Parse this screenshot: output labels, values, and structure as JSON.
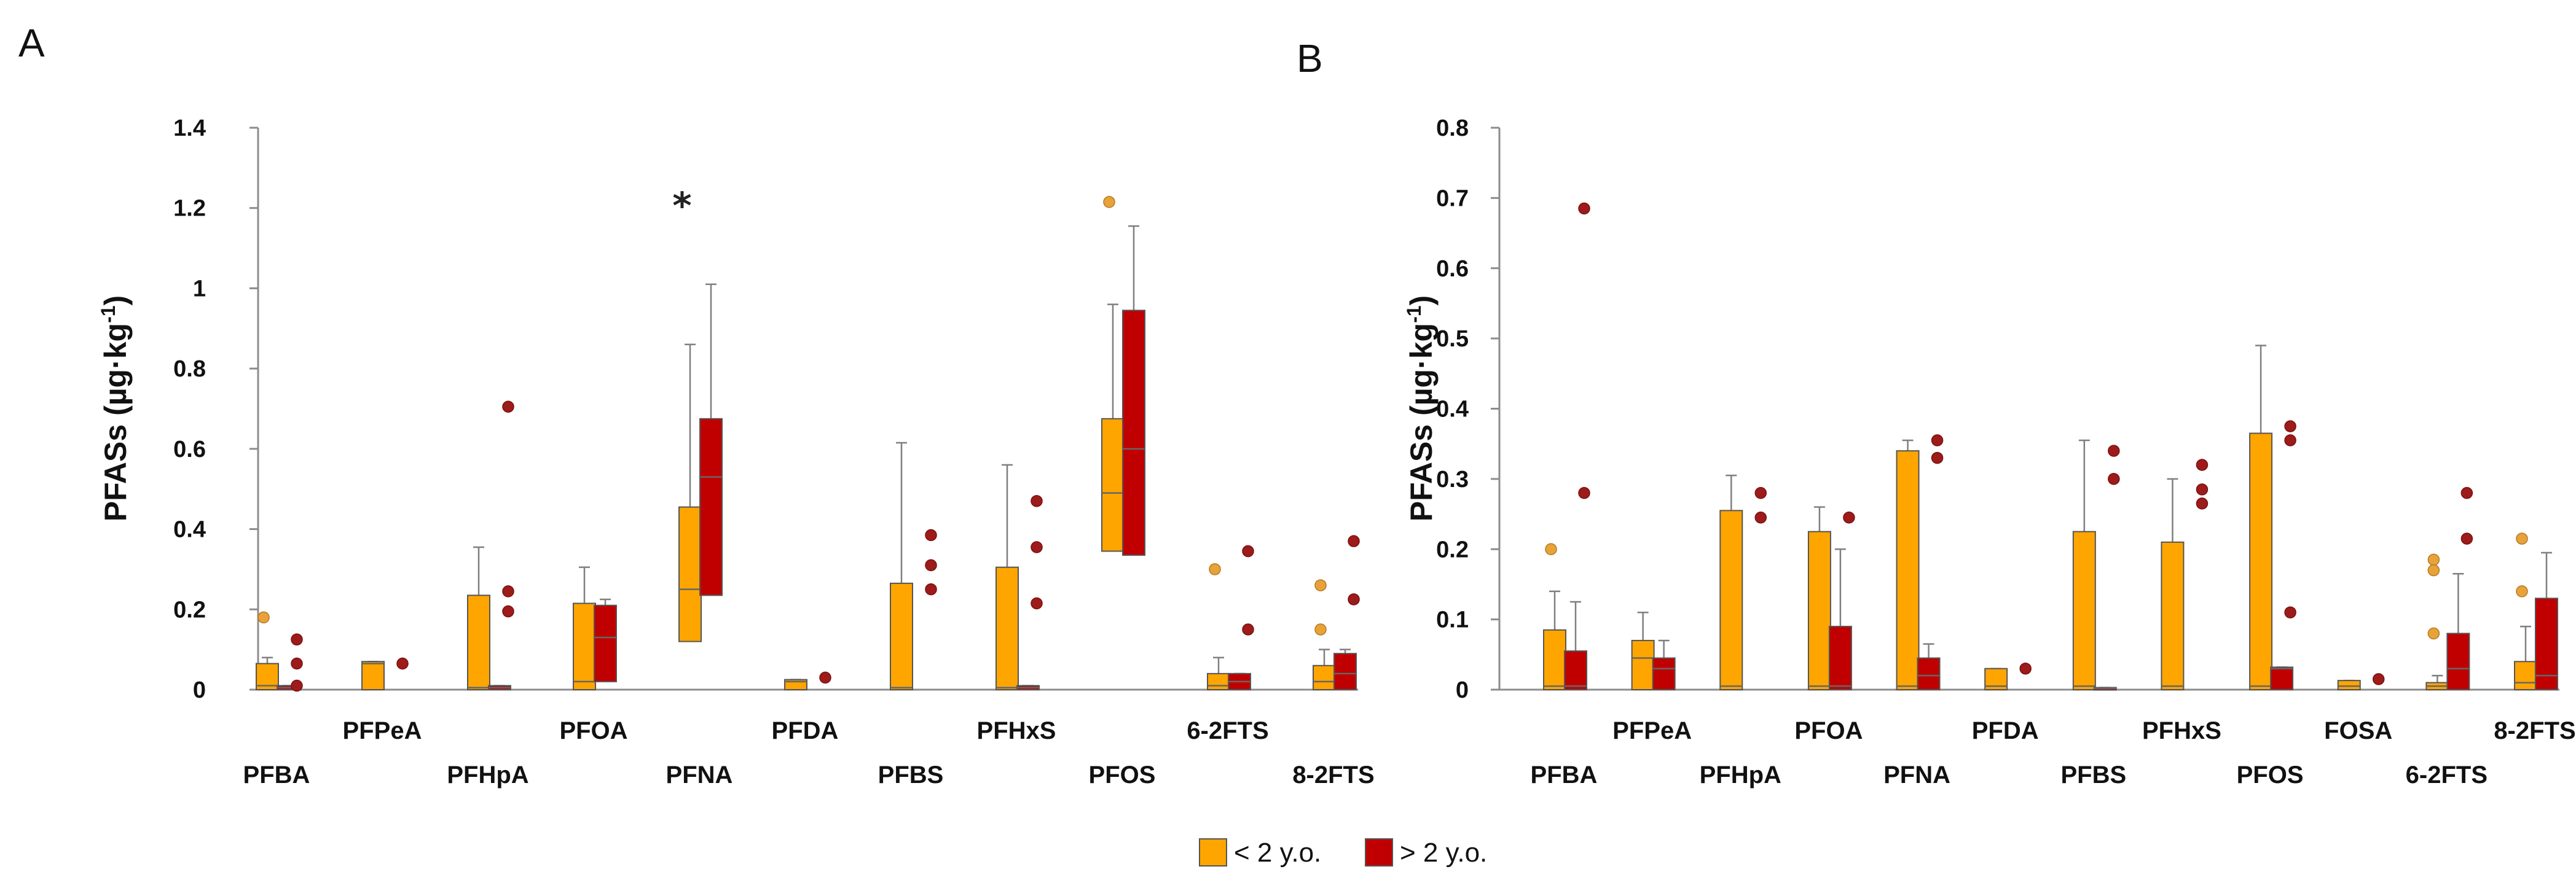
{
  "legend": [
    {
      "label": "< 2 y.o.",
      "color": "#FFA500"
    },
    {
      "label": "> 2 y.o.",
      "color": "#C00000"
    }
  ],
  "chart_data": [
    {
      "type": "box",
      "panel_label": "A",
      "ylabel": "PFASs (µg·kg",
      "ylabel_exp": "-1",
      "ylabel_close": ")",
      "ylim": [
        0,
        1.4
      ],
      "yticks": [
        "0",
        "0.2",
        "0.4",
        "0.6",
        "0.8",
        "1",
        "1.2",
        "1.4"
      ],
      "yticks_values": [
        0,
        0.2,
        0.4,
        0.6,
        0.8,
        1.0,
        1.2,
        1.4
      ],
      "categories": [
        "PFBA",
        "PFPeA",
        "PFHpA",
        "PFOA",
        "PFNA",
        "PFDA",
        "PFBS",
        "PFHxS",
        "PFOS",
        "6-2FTS",
        "8-2FTS"
      ],
      "annotations": [
        {
          "text": "*",
          "category": "PFNA",
          "y": 1.22
        }
      ],
      "series": [
        {
          "name": "< 2 y.o.",
          "boxes": [
            {
              "q1": 0,
              "med": 0.01,
              "q3": 0.065,
              "wlo": 0,
              "whi": 0.08,
              "out": [
                0.18
              ]
            },
            {
              "q1": 0,
              "med": 0.065,
              "q3": 0.07,
              "wlo": 0,
              "whi": 0.07,
              "out": []
            },
            {
              "q1": 0,
              "med": 0.005,
              "q3": 0.235,
              "wlo": 0,
              "whi": 0.355,
              "out": []
            },
            {
              "q1": 0,
              "med": 0.02,
              "q3": 0.215,
              "wlo": 0,
              "whi": 0.305,
              "out": []
            },
            {
              "q1": 0.12,
              "med": 0.25,
              "q3": 0.455,
              "wlo": 0,
              "whi": 0.86,
              "out": []
            },
            {
              "q1": 0,
              "med": 0.02,
              "q3": 0.025,
              "wlo": 0,
              "whi": 0.025,
              "out": []
            },
            {
              "q1": 0,
              "med": 0.005,
              "q3": 0.265,
              "wlo": 0,
              "whi": 0.615,
              "out": []
            },
            {
              "q1": 0,
              "med": 0.005,
              "q3": 0.305,
              "wlo": 0,
              "whi": 0.56,
              "out": []
            },
            {
              "q1": 0.345,
              "med": 0.49,
              "q3": 0.675,
              "wlo": 0.12,
              "whi": 0.96,
              "out": [
                1.215
              ]
            },
            {
              "q1": 0,
              "med": 0.01,
              "q3": 0.04,
              "wlo": 0,
              "whi": 0.08,
              "out": [
                0.3
              ]
            },
            {
              "q1": 0,
              "med": 0.02,
              "q3": 0.06,
              "wlo": 0,
              "whi": 0.1,
              "out": [
                0.26,
                0.15
              ]
            }
          ]
        },
        {
          "name": "> 2 y.o.",
          "boxes": [
            {
              "q1": 0,
              "med": 0.005,
              "q3": 0.01,
              "wlo": 0,
              "whi": 0.01,
              "out": [
                0.125,
                0.065,
                0.01
              ]
            },
            null,
            {
              "q1": 0,
              "med": 0.005,
              "q3": 0.01,
              "wlo": 0,
              "whi": 0.01,
              "out": [
                0.705,
                0.245,
                0.195
              ]
            },
            {
              "q1": 0.02,
              "med": 0.13,
              "q3": 0.21,
              "wlo": 0,
              "whi": 0.225,
              "out": []
            },
            {
              "q1": 0.235,
              "med": 0.53,
              "q3": 0.675,
              "wlo": 0,
              "whi": 1.01,
              "out": []
            },
            null,
            null,
            {
              "q1": 0,
              "med": 0.005,
              "q3": 0.01,
              "wlo": 0,
              "whi": 0.01,
              "out": [
                0.47,
                0.355,
                0.215
              ]
            },
            {
              "q1": 0.335,
              "med": 0.6,
              "q3": 0.945,
              "wlo": 0.155,
              "whi": 1.155,
              "out": []
            },
            {
              "q1": 0,
              "med": 0.02,
              "q3": 0.04,
              "wlo": 0,
              "whi": 0.04,
              "out": [
                0.345,
                0.15
              ]
            },
            {
              "q1": 0,
              "med": 0.04,
              "q3": 0.09,
              "wlo": 0,
              "whi": 0.1,
              "out": [
                0.37,
                0.225
              ]
            }
          ]
        }
      ],
      "extra_outliers": [
        {
          "category": "PFPeA",
          "series": "> 2 y.o.",
          "y": 0.065
        },
        {
          "category": "PFDA",
          "series": "> 2 y.o.",
          "y": 0.03
        },
        {
          "category": "PFBS",
          "series": "> 2 y.o.",
          "y": 0.385
        },
        {
          "category": "PFBS",
          "series": "> 2 y.o.",
          "y": 0.31
        },
        {
          "category": "PFBS",
          "series": "> 2 y.o.",
          "y": 0.25
        }
      ]
    },
    {
      "type": "box",
      "panel_label": "B",
      "ylabel": "PFASs (µg·kg",
      "ylabel_exp": "-1",
      "ylabel_close": ")",
      "ylim": [
        0,
        0.8
      ],
      "yticks": [
        "0",
        "0.1",
        "0.2",
        "0.3",
        "0.4",
        "0.5",
        "0.6",
        "0.7",
        "0.8"
      ],
      "yticks_values": [
        0,
        0.1,
        0.2,
        0.3,
        0.4,
        0.5,
        0.6,
        0.7,
        0.8
      ],
      "categories": [
        "PFBA",
        "PFPeA",
        "PFHpA",
        "PFOA",
        "PFNA",
        "PFDA",
        "PFBS",
        "PFHxS",
        "PFOS",
        "FOSA",
        "6-2FTS",
        "8-2FTS"
      ],
      "annotations": [],
      "series": [
        {
          "name": "< 2 y.o.",
          "boxes": [
            {
              "q1": 0,
              "med": 0.005,
              "q3": 0.085,
              "wlo": 0,
              "whi": 0.14,
              "out": [
                0.2
              ]
            },
            {
              "q1": 0,
              "med": 0.045,
              "q3": 0.07,
              "wlo": 0,
              "whi": 0.11,
              "out": []
            },
            {
              "q1": 0,
              "med": 0.005,
              "q3": 0.255,
              "wlo": 0,
              "whi": 0.305,
              "out": []
            },
            {
              "q1": 0,
              "med": 0.005,
              "q3": 0.225,
              "wlo": 0,
              "whi": 0.26,
              "out": []
            },
            {
              "q1": 0,
              "med": 0.005,
              "q3": 0.34,
              "wlo": 0,
              "whi": 0.355,
              "out": []
            },
            {
              "q1": 0,
              "med": 0.005,
              "q3": 0.03,
              "wlo": 0,
              "whi": 0.03,
              "out": []
            },
            {
              "q1": 0,
              "med": 0.005,
              "q3": 0.225,
              "wlo": 0,
              "whi": 0.355,
              "out": []
            },
            {
              "q1": 0,
              "med": 0.005,
              "q3": 0.21,
              "wlo": 0,
              "whi": 0.3,
              "out": []
            },
            {
              "q1": 0,
              "med": 0.005,
              "q3": 0.365,
              "wlo": 0,
              "whi": 0.49,
              "out": []
            },
            {
              "q1": 0,
              "med": 0.005,
              "q3": 0.013,
              "wlo": 0,
              "whi": 0.013,
              "out": []
            },
            {
              "q1": 0,
              "med": 0.005,
              "q3": 0.01,
              "wlo": 0,
              "whi": 0.02,
              "out": [
                0.185,
                0.17,
                0.08
              ]
            },
            {
              "q1": 0,
              "med": 0.01,
              "q3": 0.04,
              "wlo": 0,
              "whi": 0.09,
              "out": [
                0.215,
                0.14
              ]
            }
          ]
        },
        {
          "name": "> 2 y.o.",
          "boxes": [
            {
              "q1": 0,
              "med": 0.005,
              "q3": 0.055,
              "wlo": 0,
              "whi": 0.125,
              "out": [
                0.685,
                0.28
              ]
            },
            {
              "q1": 0,
              "med": 0.03,
              "q3": 0.045,
              "wlo": 0,
              "whi": 0.07,
              "out": []
            },
            null,
            {
              "q1": 0,
              "med": 0.005,
              "q3": 0.09,
              "wlo": 0,
              "whi": 0.2,
              "out": []
            },
            {
              "q1": 0,
              "med": 0.02,
              "q3": 0.045,
              "wlo": 0,
              "whi": 0.065,
              "out": []
            },
            null,
            {
              "q1": 0,
              "med": 0.002,
              "q3": 0.003,
              "wlo": 0,
              "whi": 0.003,
              "out": []
            },
            null,
            {
              "q1": 0,
              "med": 0.03,
              "q3": 0.032,
              "wlo": 0,
              "whi": 0.032,
              "out": []
            },
            null,
            {
              "q1": 0,
              "med": 0.03,
              "q3": 0.08,
              "wlo": 0,
              "whi": 0.165,
              "out": [
                0.28,
                0.215
              ]
            },
            {
              "q1": 0,
              "med": 0.02,
              "q3": 0.13,
              "wlo": 0,
              "whi": 0.195,
              "out": []
            }
          ]
        }
      ],
      "extra_outliers": [
        {
          "category": "PFHpA",
          "series": "> 2 y.o.",
          "y": 0.28
        },
        {
          "category": "PFHpA",
          "series": "> 2 y.o.",
          "y": 0.245
        },
        {
          "category": "PFOA",
          "series": "> 2 y.o.",
          "y": 0.245
        },
        {
          "category": "PFNA",
          "series": "> 2 y.o.",
          "y": 0.355
        },
        {
          "category": "PFNA",
          "series": "> 2 y.o.",
          "y": 0.33
        },
        {
          "category": "PFDA",
          "series": "> 2 y.o.",
          "y": 0.03
        },
        {
          "category": "PFBS",
          "series": "> 2 y.o.",
          "y": 0.34
        },
        {
          "category": "PFBS",
          "series": "> 2 y.o.",
          "y": 0.3
        },
        {
          "category": "PFHxS",
          "series": "> 2 y.o.",
          "y": 0.32
        },
        {
          "category": "PFHxS",
          "series": "> 2 y.o.",
          "y": 0.285
        },
        {
          "category": "PFHxS",
          "series": "> 2 y.o.",
          "y": 0.265
        },
        {
          "category": "PFOS",
          "series": "> 2 y.o.",
          "y": 0.375
        },
        {
          "category": "PFOS",
          "series": "> 2 y.o.",
          "y": 0.355
        },
        {
          "category": "PFOS",
          "series": "> 2 y.o.",
          "y": 0.11
        },
        {
          "category": "FOSA",
          "series": "> 2 y.o.",
          "y": 0.015
        }
      ]
    }
  ]
}
